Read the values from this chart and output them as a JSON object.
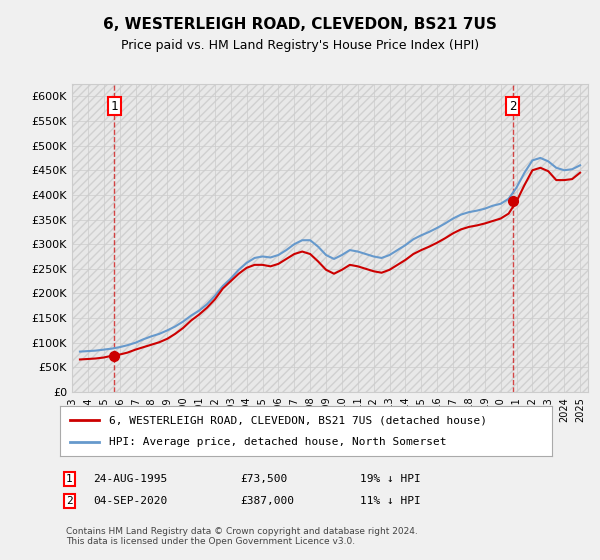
{
  "title": "6, WESTERLEIGH ROAD, CLEVEDON, BS21 7US",
  "subtitle": "Price paid vs. HM Land Registry's House Price Index (HPI)",
  "xlabel": "",
  "ylabel": "",
  "ylim": [
    0,
    625000
  ],
  "yticks": [
    0,
    50000,
    100000,
    150000,
    200000,
    250000,
    300000,
    350000,
    400000,
    450000,
    500000,
    550000,
    600000
  ],
  "ytick_labels": [
    "£0",
    "£50K",
    "£100K",
    "£150K",
    "£200K",
    "£250K",
    "£300K",
    "£350K",
    "£400K",
    "£450K",
    "£500K",
    "£550K",
    "£600K"
  ],
  "background_color": "#f0f0f0",
  "plot_bg_color": "#ffffff",
  "grid_color": "#cccccc",
  "hpi_color": "#6699cc",
  "price_color": "#cc0000",
  "transaction1": {
    "date": "1995-08-24",
    "price": 73500,
    "label": "1"
  },
  "transaction2": {
    "date": "2020-09-04",
    "price": 387000,
    "label": "2"
  },
  "legend_line1": "6, WESTERLEIGH ROAD, CLEVEDON, BS21 7US (detached house)",
  "legend_line2": "HPI: Average price, detached house, North Somerset",
  "note1": "1   24-AUG-1995       £73,500       19% ↓ HPI",
  "note2": "2   04-SEP-2020       £387,000      11% ↓ HPI",
  "footer": "Contains HM Land Registry data © Crown copyright and database right 2024.\nThis data is licensed under the Open Government Licence v3.0.",
  "hpi_data": {
    "years": [
      1993.5,
      1994.0,
      1994.5,
      1995.0,
      1995.5,
      1996.0,
      1996.5,
      1997.0,
      1997.5,
      1998.0,
      1998.5,
      1999.0,
      1999.5,
      2000.0,
      2000.5,
      2001.0,
      2001.5,
      2002.0,
      2002.5,
      2003.0,
      2003.5,
      2004.0,
      2004.5,
      2005.0,
      2005.5,
      2006.0,
      2006.5,
      2007.0,
      2007.5,
      2008.0,
      2008.5,
      2009.0,
      2009.5,
      2010.0,
      2010.5,
      2011.0,
      2011.5,
      2012.0,
      2012.5,
      2013.0,
      2013.5,
      2014.0,
      2014.5,
      2015.0,
      2015.5,
      2016.0,
      2016.5,
      2017.0,
      2017.5,
      2018.0,
      2018.5,
      2019.0,
      2019.5,
      2020.0,
      2020.5,
      2021.0,
      2021.5,
      2022.0,
      2022.5,
      2023.0,
      2023.5,
      2024.0,
      2024.5,
      2025.0
    ],
    "values": [
      82000,
      83000,
      84000,
      86000,
      88000,
      91000,
      95000,
      100000,
      107000,
      113000,
      118000,
      125000,
      133000,
      143000,
      155000,
      165000,
      178000,
      195000,
      215000,
      230000,
      248000,
      262000,
      272000,
      275000,
      273000,
      278000,
      288000,
      300000,
      308000,
      308000,
      295000,
      278000,
      270000,
      278000,
      288000,
      285000,
      280000,
      275000,
      272000,
      278000,
      288000,
      298000,
      310000,
      318000,
      325000,
      333000,
      342000,
      352000,
      360000,
      365000,
      368000,
      372000,
      378000,
      382000,
      392000,
      415000,
      445000,
      470000,
      475000,
      468000,
      455000,
      450000,
      452000,
      460000
    ]
  },
  "price_data": {
    "years": [
      1993.5,
      1994.0,
      1994.5,
      1995.0,
      1995.5,
      1996.0,
      1996.5,
      1997.0,
      1997.5,
      1998.0,
      1998.5,
      1999.0,
      1999.5,
      2000.0,
      2000.5,
      2001.0,
      2001.5,
      2002.0,
      2002.5,
      2003.0,
      2003.5,
      2004.0,
      2004.5,
      2005.0,
      2005.5,
      2006.0,
      2006.5,
      2007.0,
      2007.5,
      2008.0,
      2008.5,
      2009.0,
      2009.5,
      2010.0,
      2010.5,
      2011.0,
      2011.5,
      2012.0,
      2012.5,
      2013.0,
      2013.5,
      2014.0,
      2014.5,
      2015.0,
      2015.5,
      2016.0,
      2016.5,
      2017.0,
      2017.5,
      2018.0,
      2018.5,
      2019.0,
      2019.5,
      2020.0,
      2020.5,
      2021.0,
      2021.5,
      2022.0,
      2022.5,
      2023.0,
      2023.5,
      2024.0,
      2024.5,
      2025.0
    ],
    "values": [
      66000,
      67000,
      68000,
      70000,
      73500,
      76000,
      80000,
      86000,
      91000,
      96000,
      101000,
      108000,
      118000,
      130000,
      145000,
      157000,
      171000,
      188000,
      210000,
      225000,
      240000,
      252000,
      258000,
      258000,
      255000,
      260000,
      270000,
      280000,
      285000,
      280000,
      265000,
      248000,
      240000,
      248000,
      258000,
      255000,
      250000,
      245000,
      242000,
      248000,
      258000,
      268000,
      280000,
      288000,
      295000,
      303000,
      312000,
      322000,
      330000,
      335000,
      338000,
      342000,
      347000,
      352000,
      362000,
      387000,
      420000,
      450000,
      455000,
      448000,
      430000,
      430000,
      432000,
      445000
    ]
  }
}
